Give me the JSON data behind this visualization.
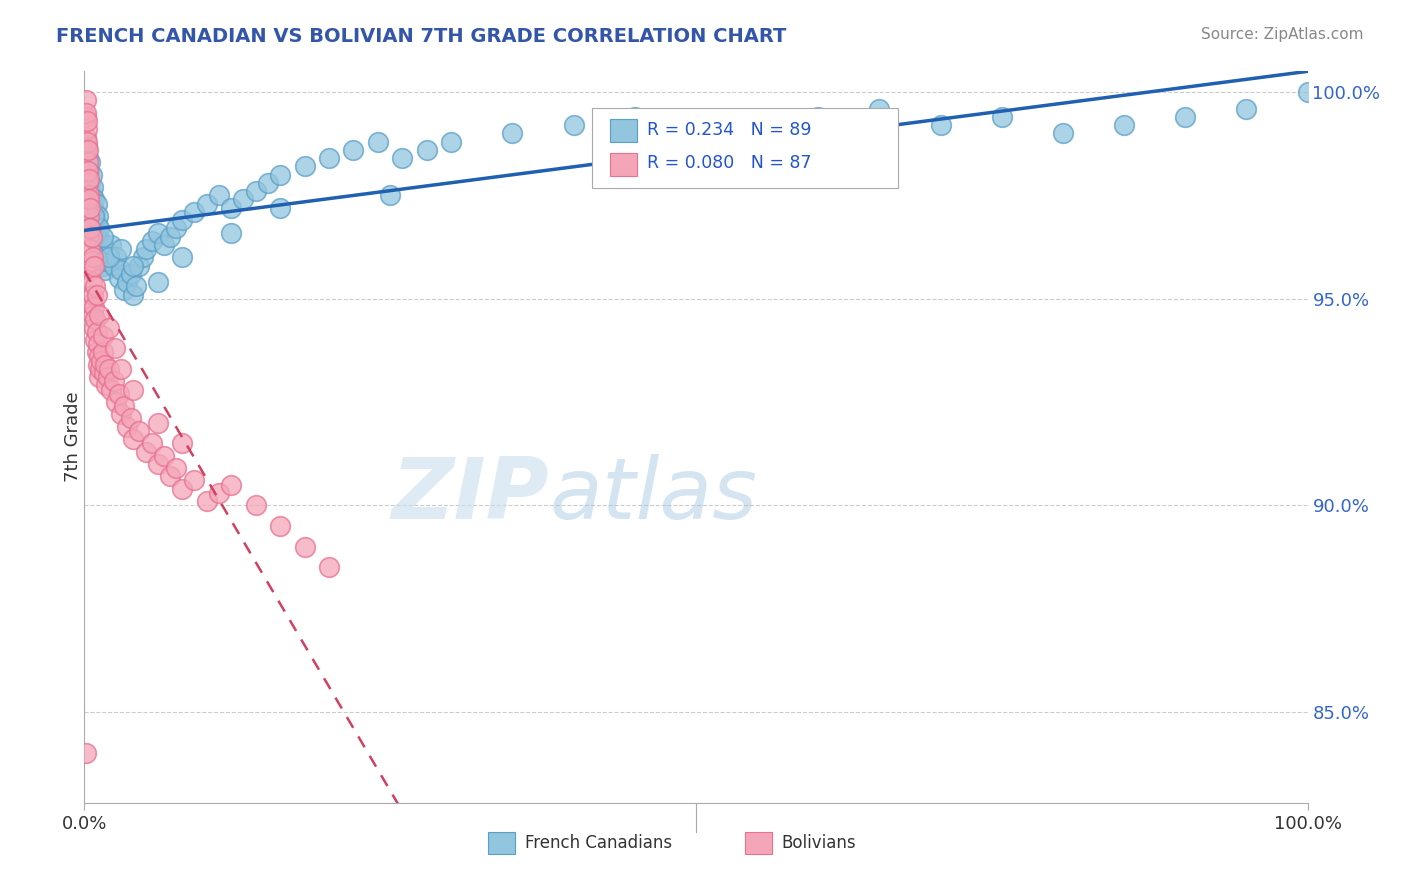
{
  "title": "FRENCH CANADIAN VS BOLIVIAN 7TH GRADE CORRELATION CHART",
  "source": "Source: ZipAtlas.com",
  "ylabel": "7th Grade",
  "blue_label": "French Canadians",
  "pink_label": "Bolivians",
  "blue_R": 0.234,
  "blue_N": 89,
  "pink_R": 0.08,
  "pink_N": 87,
  "blue_color": "#92c5de",
  "pink_color": "#f4a6b8",
  "blue_edge_color": "#5a9fc8",
  "pink_edge_color": "#e87090",
  "blue_line_color": "#2060b0",
  "pink_line_color": "#d04060",
  "watermark_zip": "ZIP",
  "watermark_atlas": "atlas",
  "ymin": 0.828,
  "ymax": 1.005,
  "xmin": 0.0,
  "xmax": 1.0,
  "yticks": [
    0.85,
    0.9,
    0.95,
    1.0
  ],
  "ytick_labels": [
    "85.0%",
    "90.0%",
    "95.0%",
    "100.0%"
  ],
  "blue_x": [
    0.001,
    0.002,
    0.003,
    0.003,
    0.004,
    0.004,
    0.005,
    0.005,
    0.006,
    0.006,
    0.007,
    0.007,
    0.008,
    0.008,
    0.009,
    0.01,
    0.01,
    0.011,
    0.011,
    0.012,
    0.012,
    0.013,
    0.013,
    0.014,
    0.015,
    0.015,
    0.016,
    0.017,
    0.018,
    0.02,
    0.022,
    0.024,
    0.026,
    0.028,
    0.03,
    0.032,
    0.035,
    0.038,
    0.04,
    0.042,
    0.045,
    0.048,
    0.05,
    0.055,
    0.06,
    0.065,
    0.07,
    0.075,
    0.08,
    0.09,
    0.1,
    0.11,
    0.12,
    0.13,
    0.14,
    0.15,
    0.16,
    0.18,
    0.2,
    0.22,
    0.24,
    0.26,
    0.28,
    0.3,
    0.35,
    0.4,
    0.45,
    0.5,
    0.55,
    0.6,
    0.65,
    0.7,
    0.75,
    0.8,
    0.85,
    0.9,
    0.95,
    1.0,
    0.008,
    0.015,
    0.02,
    0.03,
    0.04,
    0.06,
    0.08,
    0.12,
    0.16,
    0.25
  ],
  "blue_y": [
    0.983,
    0.987,
    0.984,
    0.979,
    0.981,
    0.976,
    0.978,
    0.983,
    0.975,
    0.98,
    0.977,
    0.972,
    0.974,
    0.969,
    0.971,
    0.973,
    0.968,
    0.97,
    0.965,
    0.967,
    0.962,
    0.964,
    0.959,
    0.961,
    0.963,
    0.958,
    0.96,
    0.957,
    0.959,
    0.961,
    0.963,
    0.958,
    0.96,
    0.955,
    0.957,
    0.952,
    0.954,
    0.956,
    0.951,
    0.953,
    0.958,
    0.96,
    0.962,
    0.964,
    0.966,
    0.963,
    0.965,
    0.967,
    0.969,
    0.971,
    0.973,
    0.975,
    0.972,
    0.974,
    0.976,
    0.978,
    0.98,
    0.982,
    0.984,
    0.986,
    0.988,
    0.984,
    0.986,
    0.988,
    0.99,
    0.992,
    0.994,
    0.99,
    0.992,
    0.994,
    0.996,
    0.992,
    0.994,
    0.99,
    0.992,
    0.994,
    0.996,
    1.0,
    0.97,
    0.965,
    0.96,
    0.962,
    0.958,
    0.954,
    0.96,
    0.966,
    0.972,
    0.975
  ],
  "pink_x": [
    0.001,
    0.001,
    0.001,
    0.002,
    0.002,
    0.002,
    0.003,
    0.003,
    0.003,
    0.004,
    0.004,
    0.004,
    0.005,
    0.005,
    0.005,
    0.006,
    0.006,
    0.006,
    0.007,
    0.007,
    0.008,
    0.008,
    0.009,
    0.009,
    0.01,
    0.01,
    0.011,
    0.011,
    0.012,
    0.012,
    0.013,
    0.014,
    0.015,
    0.016,
    0.017,
    0.018,
    0.019,
    0.02,
    0.022,
    0.024,
    0.026,
    0.028,
    0.03,
    0.032,
    0.035,
    0.038,
    0.04,
    0.045,
    0.05,
    0.055,
    0.06,
    0.065,
    0.07,
    0.075,
    0.08,
    0.09,
    0.1,
    0.11,
    0.12,
    0.14,
    0.16,
    0.18,
    0.2,
    0.001,
    0.002,
    0.002,
    0.003,
    0.003,
    0.004,
    0.004,
    0.005,
    0.005,
    0.006,
    0.007,
    0.008,
    0.009,
    0.01,
    0.012,
    0.015,
    0.02,
    0.025,
    0.03,
    0.04,
    0.06,
    0.08,
    0.001
  ],
  "pink_y": [
    0.998,
    0.994,
    0.989,
    0.991,
    0.986,
    0.981,
    0.983,
    0.978,
    0.973,
    0.975,
    0.97,
    0.965,
    0.967,
    0.962,
    0.957,
    0.959,
    0.954,
    0.949,
    0.951,
    0.946,
    0.948,
    0.943,
    0.945,
    0.94,
    0.942,
    0.937,
    0.939,
    0.934,
    0.936,
    0.931,
    0.933,
    0.935,
    0.937,
    0.932,
    0.934,
    0.929,
    0.931,
    0.933,
    0.928,
    0.93,
    0.925,
    0.927,
    0.922,
    0.924,
    0.919,
    0.921,
    0.916,
    0.918,
    0.913,
    0.915,
    0.91,
    0.912,
    0.907,
    0.909,
    0.904,
    0.906,
    0.901,
    0.903,
    0.905,
    0.9,
    0.895,
    0.89,
    0.885,
    0.995,
    0.993,
    0.988,
    0.986,
    0.981,
    0.979,
    0.974,
    0.972,
    0.967,
    0.965,
    0.96,
    0.958,
    0.953,
    0.951,
    0.946,
    0.941,
    0.943,
    0.938,
    0.933,
    0.928,
    0.92,
    0.915,
    0.84
  ]
}
